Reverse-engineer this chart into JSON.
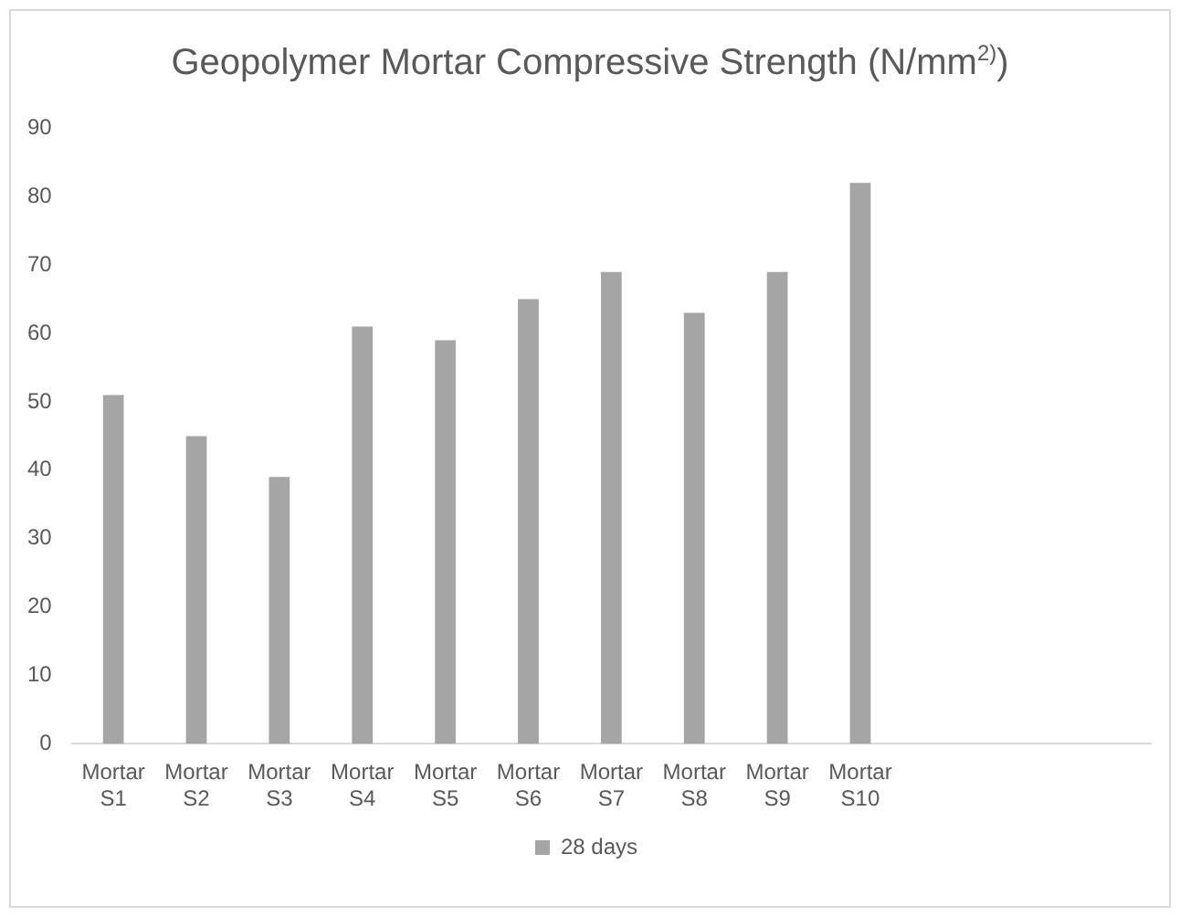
{
  "chart_data": {
    "type": "bar",
    "title": "Geopolymer Mortar Compressive Strength (N/mm$^{2)}$)",
    "categories": [
      "Mortar S1",
      "Mortar S2",
      "Mortar S3",
      "Mortar S4",
      "Mortar S5",
      "Mortar S6",
      "Mortar S7",
      "Mortar S8",
      "Mortar S9",
      "Mortar S10",
      null,
      null,
      null
    ],
    "series": [
      {
        "name": "28 days",
        "color": "#a5a5a5",
        "values": [
          51,
          45,
          39,
          61,
          59,
          65,
          69,
          63,
          69,
          82,
          null,
          null,
          null
        ]
      }
    ],
    "ylim": [
      0,
      90
    ],
    "yticks": [
      0,
      10,
      20,
      30,
      40,
      50,
      60,
      70,
      80,
      90
    ],
    "grid": false,
    "legend": "bottom"
  }
}
